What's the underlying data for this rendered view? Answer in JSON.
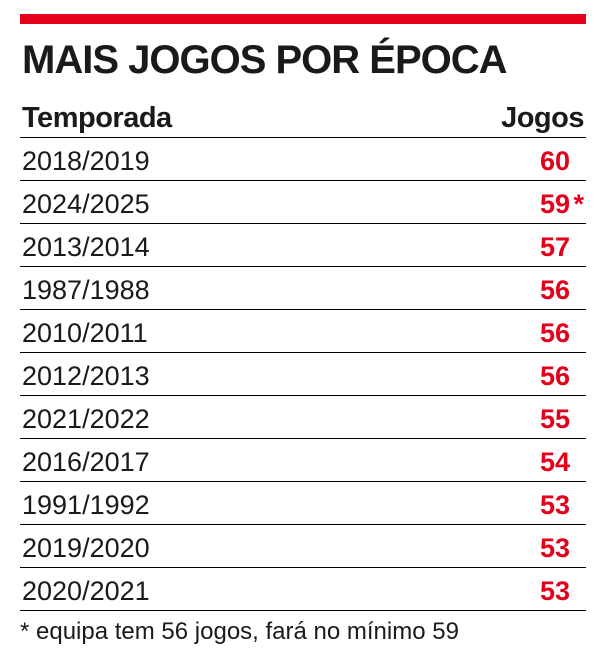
{
  "title": "MAIS JOGOS POR ÉPOCA",
  "colors": {
    "accent": "#e3001b",
    "text": "#1a1a1a"
  },
  "chart_data": {
    "type": "table",
    "columns": [
      "Temporada",
      "Jogos"
    ],
    "rows": [
      {
        "season": "2018/2019",
        "games": "60",
        "note": ""
      },
      {
        "season": "2024/2025",
        "games": "59",
        "note": "*"
      },
      {
        "season": "2013/2014",
        "games": "57",
        "note": ""
      },
      {
        "season": "1987/1988",
        "games": "56",
        "note": ""
      },
      {
        "season": "2010/2011",
        "games": "56",
        "note": ""
      },
      {
        "season": "2012/2013",
        "games": "56",
        "note": ""
      },
      {
        "season": "2021/2022",
        "games": "55",
        "note": ""
      },
      {
        "season": "2016/2017",
        "games": "54",
        "note": ""
      },
      {
        "season": "1991/1992",
        "games": "53",
        "note": ""
      },
      {
        "season": "2019/2020",
        "games": "53",
        "note": ""
      },
      {
        "season": "2020/2021",
        "games": "53",
        "note": ""
      }
    ],
    "footnote": "* equipa tem 56 jogos, fará no mínimo 59"
  }
}
